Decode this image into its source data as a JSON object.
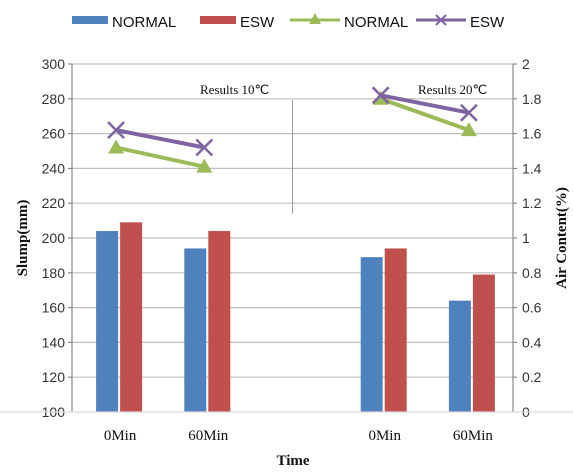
{
  "chart_data": {
    "type": "bar+line",
    "categories": [
      "0Min",
      "60Min",
      "",
      "0Min",
      "60Min"
    ],
    "xlabel": "Time",
    "ylabel": "Slump(mm)",
    "y2label": "Air Content(%)",
    "ylim": [
      100,
      300
    ],
    "y2lim": [
      0,
      2
    ],
    "yticks": [
      "100",
      "120",
      "140",
      "160",
      "180",
      "200",
      "220",
      "240",
      "260",
      "280",
      "300"
    ],
    "y2ticks": [
      "0",
      "0.2",
      "0.4",
      "0.6",
      "0.8",
      "1",
      "1.2",
      "1.4",
      "1.6",
      "1.8",
      "2"
    ],
    "grid": true,
    "legend_position": "top",
    "annotations": [
      "Results  10℃",
      "Results  20℃"
    ],
    "bar_series": [
      {
        "name": "NORMAL",
        "color": "#4f81bd",
        "axis": "left",
        "values": [
          204,
          194,
          null,
          189,
          164
        ]
      },
      {
        "name": "ESW",
        "color": "#c0504d",
        "axis": "left",
        "values": [
          209,
          204,
          null,
          194,
          179
        ]
      }
    ],
    "line_series": [
      {
        "name": "NORMAL",
        "color": "#9bbb59",
        "marker": "triangle",
        "axis": "right",
        "segments": [
          {
            "categories": [
              0,
              1
            ],
            "values": [
              1.52,
              1.41
            ]
          },
          {
            "categories": [
              3,
              4
            ],
            "values": [
              1.8,
              1.62
            ]
          }
        ]
      },
      {
        "name": "ESW",
        "color": "#8064a2",
        "marker": "x",
        "axis": "right",
        "segments": [
          {
            "categories": [
              0,
              1
            ],
            "values": [
              1.62,
              1.52
            ]
          },
          {
            "categories": [
              3,
              4
            ],
            "values": [
              1.82,
              1.72
            ]
          }
        ]
      }
    ]
  }
}
